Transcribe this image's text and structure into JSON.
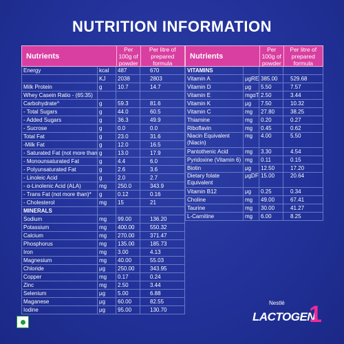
{
  "title": "NUTRITION INFORMATION",
  "header": {
    "nutrients": "Nutrients",
    "per100g": "Per 100g of powder",
    "perlitre": "Per litre of prepared formula"
  },
  "left_rows": [
    {
      "name": "Energy",
      "unit": "kcal",
      "v1": "487",
      "v2": "670"
    },
    {
      "name": "",
      "unit": "KJ",
      "v1": "2038",
      "v2": "2803"
    },
    {
      "name": "Milk Protein",
      "unit": "g",
      "v1": "10.7",
      "v2": "14.7"
    },
    {
      "name": "Whey Casein Ratio - (65:35)",
      "unit": "",
      "v1": "",
      "v2": ""
    },
    {
      "name": "Carbohydrate^",
      "unit": "g",
      "v1": "59.3",
      "v2": "81.6"
    },
    {
      "name": "- Total Sugars",
      "unit": "g",
      "v1": "44.0",
      "v2": "60.5"
    },
    {
      "name": "- Added Sugars",
      "unit": "g",
      "v1": "36.3",
      "v2": "49.9"
    },
    {
      "name": "- Sucrose",
      "unit": "g",
      "v1": "0.0",
      "v2": "0.0"
    },
    {
      "name": "Total Fat",
      "unit": "g",
      "v1": "23.0",
      "v2": "31.6"
    },
    {
      "name": "-Milk Fat",
      "unit": "g",
      "v1": "12.0",
      "v2": "16.5"
    },
    {
      "name": "- Saturated Fat (not more than)",
      "unit": "g",
      "v1": "13.0",
      "v2": "17.9"
    },
    {
      "name": "- Monounsaturated Fat",
      "unit": "g",
      "v1": "4.4",
      "v2": "6.0"
    },
    {
      "name": "- Polyunsaturated Fat",
      "unit": "g",
      "v1": "2.6",
      "v2": "3.6"
    },
    {
      "name": "- Linoleic Acid",
      "unit": "g",
      "v1": "2.0",
      "v2": "2.7"
    },
    {
      "name": "- α-Linolenic Acid (ALA)",
      "unit": "mg",
      "v1": "250.0",
      "v2": "343.9"
    },
    {
      "name": "- Trans Fat (not more than)*",
      "unit": "g",
      "v1": "0.12",
      "v2": "0.16"
    },
    {
      "name": "- Cholesterol",
      "unit": "mg",
      "v1": "15",
      "v2": "21"
    },
    {
      "name": "MINERALS",
      "unit": "",
      "v1": "",
      "v2": ""
    },
    {
      "name": "Sodium",
      "unit": "mg",
      "v1": "99.00",
      "v2": "136.20"
    },
    {
      "name": "Potassium",
      "unit": "mg",
      "v1": "400.00",
      "v2": "550.32"
    },
    {
      "name": "Calcium",
      "unit": "mg",
      "v1": "270.00",
      "v2": "371.47"
    },
    {
      "name": "Phosphorus",
      "unit": "mg",
      "v1": "135.00",
      "v2": "185.73"
    },
    {
      "name": "Iron",
      "unit": "mg",
      "v1": "3.00",
      "v2": "4.13"
    },
    {
      "name": "Magnesium",
      "unit": "mg",
      "v1": "40.00",
      "v2": "55.03"
    },
    {
      "name": "Chloride",
      "unit": "μg",
      "v1": "250.00",
      "v2": "343.95"
    },
    {
      "name": "Copper",
      "unit": "mg",
      "v1": "0.17",
      "v2": "0.24"
    },
    {
      "name": "Zinc",
      "unit": "mg",
      "v1": "2.50",
      "v2": "3.44"
    },
    {
      "name": "Selenium",
      "unit": "μg",
      "v1": "5.00",
      "v2": "6.88"
    },
    {
      "name": "Maganese",
      "unit": "μg",
      "v1": "60.00",
      "v2": "82.55"
    },
    {
      "name": "Iodine",
      "unit": "μg",
      "v1": "95.00",
      "v2": "130.70"
    }
  ],
  "right_rows": [
    {
      "name": "VITAMINS",
      "unit": "",
      "v1": "",
      "v2": ""
    },
    {
      "name": "Vitamin A",
      "unit": "μgRE",
      "v1": "385.00",
      "v2": "529.68"
    },
    {
      "name": "Vitamin D",
      "unit": "μg",
      "v1": "5.50",
      "v2": "7.57"
    },
    {
      "name": "Vitamin E",
      "unit": "mgαTE",
      "v1": "2.50",
      "v2": "3.44"
    },
    {
      "name": "Vitamin K",
      "unit": "μg",
      "v1": "7.50",
      "v2": "10.32"
    },
    {
      "name": "Vitamin C",
      "unit": "mg",
      "v1": "27.80",
      "v2": "38.25"
    },
    {
      "name": "Thiamine",
      "unit": "mg",
      "v1": "0.20",
      "v2": "0.27"
    },
    {
      "name": "Riboflavin",
      "unit": "mg",
      "v1": "0.45",
      "v2": "0.62"
    },
    {
      "name": "Niacin Equivalent (Niacin)",
      "unit": "mg",
      "v1": "4.00",
      "v2": "5.50"
    },
    {
      "name": "Pantothenic Acid",
      "unit": "mg",
      "v1": "3.30",
      "v2": "4.54"
    },
    {
      "name": "Pyridoxine (Vitamin 6)",
      "unit": "mg",
      "v1": "0.11",
      "v2": "0.15"
    },
    {
      "name": "Biotin",
      "unit": "μg",
      "v1": "12.50",
      "v2": "17.20"
    },
    {
      "name": "Dietary folate Equivalent",
      "unit": "μgDFE",
      "v1": "15.00",
      "v2": "20.64"
    },
    {
      "name": "Vitamin B12",
      "unit": "μg",
      "v1": "0.25",
      "v2": "0.34"
    },
    {
      "name": "Choline",
      "unit": "mg",
      "v1": "49.00",
      "v2": "67.41"
    },
    {
      "name": "Taurine",
      "unit": "mg",
      "v1": "30.00",
      "v2": "41.27"
    },
    {
      "name": "L-Carnitine",
      "unit": "mg",
      "v1": "6.00",
      "v2": "8.25"
    }
  ],
  "brand": {
    "maker": "Nestlé",
    "product": "LACTOGEN",
    "stage": "1"
  },
  "colors": {
    "panel": "#22329a",
    "header": "#d83fa0",
    "accent": "#ec2c9b",
    "veg_mark": "#1f9a3a"
  },
  "icons": {
    "veg_mark": "green-dot-icon"
  }
}
